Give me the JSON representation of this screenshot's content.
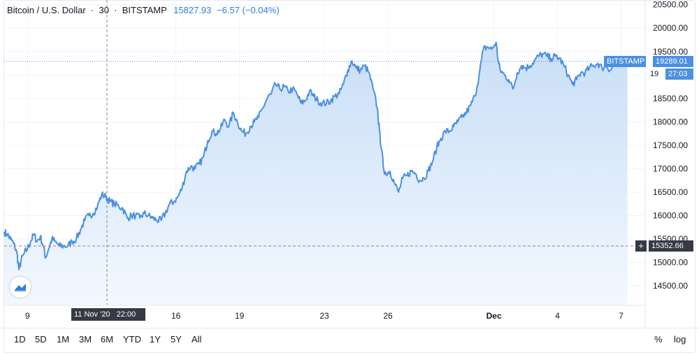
{
  "header": {
    "symbol": "Bitcoin / U.S. Dollar",
    "interval": "30",
    "exchange": "BITSTAMP",
    "price": "15827.93",
    "change": "−6.57 (−0.04%)"
  },
  "price_tags": {
    "exchange_label": "BITSTAMP",
    "last_price": "19289.01",
    "countdown": "27:03",
    "hidden_prefix": "19",
    "crosshair_price": "15352.66",
    "crosshair_date": "11 Nov '20   22:00",
    "plus": "+"
  },
  "ranges": [
    "1D",
    "5D",
    "1M",
    "3M",
    "6M",
    "YTD",
    "1Y",
    "5Y",
    "All"
  ],
  "options": {
    "percent": "%",
    "log": "log"
  },
  "colors": {
    "line": "#4a90e2",
    "area_top": "#c8def7",
    "area_bottom": "#f3f8fe",
    "tag_blue": "#4a90e2",
    "tag_dark": "#363a45",
    "grid": "#f0f3fa",
    "text": "#131722"
  },
  "icons": {
    "logo": "tradingview-logo-icon"
  },
  "chart_data": {
    "type": "area",
    "title": "Bitcoin / U.S. Dollar",
    "xlabel": "",
    "ylabel": "",
    "x_ticks": [
      "9",
      "16",
      "19",
      "23",
      "26",
      "Dec",
      "4",
      "7"
    ],
    "y_ticks": [
      14500,
      15000,
      15500,
      16000,
      16500,
      17000,
      17500,
      18000,
      18500,
      19000,
      19500,
      20000,
      20500
    ],
    "y_tick_labels": [
      "14500.00",
      "15000.00",
      "15500.00",
      "16000.00",
      "16500.00",
      "17000.00",
      "17500.00",
      "18000.00",
      "18500.00",
      "19000.00",
      "19500.00",
      "20000.00",
      "20500.00"
    ],
    "ylim": [
      14100,
      20600
    ],
    "xlim_day": [
      7.9,
      38.1
    ],
    "grid": true,
    "series": [
      {
        "points": [
          [
            7.9,
            15650
          ],
          [
            8.05,
            15600
          ],
          [
            8.2,
            15500
          ],
          [
            8.35,
            15400
          ],
          [
            8.5,
            15200
          ],
          [
            8.6,
            14850
          ],
          [
            8.7,
            15050
          ],
          [
            8.85,
            15200
          ],
          [
            9.0,
            15300
          ],
          [
            9.15,
            15450
          ],
          [
            9.3,
            15600
          ],
          [
            9.45,
            15450
          ],
          [
            9.6,
            15550
          ],
          [
            9.75,
            15350
          ],
          [
            9.85,
            15100
          ],
          [
            10.0,
            15300
          ],
          [
            10.15,
            15500
          ],
          [
            10.3,
            15450
          ],
          [
            10.5,
            15350
          ],
          [
            10.7,
            15350
          ],
          [
            10.9,
            15350
          ],
          [
            11.1,
            15450
          ],
          [
            11.3,
            15500
          ],
          [
            11.5,
            15700
          ],
          [
            11.7,
            15900
          ],
          [
            11.9,
            16000
          ],
          [
            12.1,
            16050
          ],
          [
            12.3,
            16200
          ],
          [
            12.5,
            16450
          ],
          [
            12.7,
            16400
          ],
          [
            12.9,
            16300
          ],
          [
            13.1,
            16250
          ],
          [
            13.3,
            16200
          ],
          [
            13.5,
            16150
          ],
          [
            13.7,
            15950
          ],
          [
            13.9,
            16000
          ],
          [
            14.1,
            16000
          ],
          [
            14.3,
            15950
          ],
          [
            14.5,
            16050
          ],
          [
            14.7,
            16000
          ],
          [
            14.9,
            15950
          ],
          [
            15.1,
            15900
          ],
          [
            15.3,
            15900
          ],
          [
            15.5,
            16050
          ],
          [
            15.7,
            16250
          ],
          [
            15.9,
            16300
          ],
          [
            16.1,
            16400
          ],
          [
            16.3,
            16600
          ],
          [
            16.5,
            16950
          ],
          [
            16.7,
            17050
          ],
          [
            16.9,
            17000
          ],
          [
            17.1,
            17100
          ],
          [
            17.3,
            17250
          ],
          [
            17.5,
            17600
          ],
          [
            17.7,
            17800
          ],
          [
            17.9,
            17750
          ],
          [
            18.1,
            17850
          ],
          [
            18.3,
            18050
          ],
          [
            18.5,
            17900
          ],
          [
            18.7,
            18200
          ],
          [
            18.9,
            18000
          ],
          [
            19.1,
            17800
          ],
          [
            19.3,
            17750
          ],
          [
            19.5,
            17900
          ],
          [
            19.7,
            18000
          ],
          [
            19.9,
            18100
          ],
          [
            20.1,
            18300
          ],
          [
            20.3,
            18500
          ],
          [
            20.5,
            18600
          ],
          [
            20.7,
            18800
          ],
          [
            20.9,
            18700
          ],
          [
            21.1,
            18750
          ],
          [
            21.3,
            18650
          ],
          [
            21.5,
            18700
          ],
          [
            21.7,
            18600
          ],
          [
            21.9,
            18400
          ],
          [
            22.1,
            18450
          ],
          [
            22.3,
            18650
          ],
          [
            22.5,
            18550
          ],
          [
            22.7,
            18450
          ],
          [
            22.9,
            18400
          ],
          [
            23.1,
            18400
          ],
          [
            23.3,
            18450
          ],
          [
            23.5,
            18550
          ],
          [
            23.7,
            18600
          ],
          [
            23.9,
            18800
          ],
          [
            24.1,
            19100
          ],
          [
            24.3,
            19300
          ],
          [
            24.5,
            19150
          ],
          [
            24.7,
            19100
          ],
          [
            24.9,
            19200
          ],
          [
            25.1,
            19050
          ],
          [
            25.3,
            18700
          ],
          [
            25.5,
            18300
          ],
          [
            25.6,
            17800
          ],
          [
            25.7,
            17400
          ],
          [
            25.8,
            17000
          ],
          [
            25.9,
            16900
          ],
          [
            26.1,
            16950
          ],
          [
            26.3,
            16700
          ],
          [
            26.5,
            16500
          ],
          [
            26.7,
            16800
          ],
          [
            26.9,
            16850
          ],
          [
            27.1,
            16950
          ],
          [
            27.3,
            16900
          ],
          [
            27.5,
            16750
          ],
          [
            27.7,
            16800
          ],
          [
            27.9,
            16950
          ],
          [
            28.1,
            17150
          ],
          [
            28.3,
            17450
          ],
          [
            28.5,
            17650
          ],
          [
            28.7,
            17800
          ],
          [
            28.9,
            17800
          ],
          [
            29.1,
            17900
          ],
          [
            29.3,
            18000
          ],
          [
            29.5,
            18100
          ],
          [
            29.7,
            18200
          ],
          [
            29.9,
            18350
          ],
          [
            30.1,
            18550
          ],
          [
            30.3,
            19000
          ],
          [
            30.5,
            19550
          ],
          [
            30.7,
            19600
          ],
          [
            30.9,
            19550
          ],
          [
            31.1,
            19700
          ],
          [
            31.2,
            19300
          ],
          [
            31.3,
            19100
          ],
          [
            31.5,
            19000
          ],
          [
            31.7,
            18900
          ],
          [
            31.9,
            18700
          ],
          [
            32.1,
            19050
          ],
          [
            32.3,
            19200
          ],
          [
            32.5,
            19150
          ],
          [
            32.7,
            19200
          ],
          [
            32.9,
            19300
          ],
          [
            33.1,
            19400
          ],
          [
            33.3,
            19450
          ],
          [
            33.5,
            19400
          ],
          [
            33.7,
            19350
          ],
          [
            33.9,
            19400
          ],
          [
            34.1,
            19350
          ],
          [
            34.3,
            19200
          ],
          [
            34.5,
            19000
          ],
          [
            34.7,
            18800
          ],
          [
            34.9,
            18900
          ],
          [
            35.1,
            19050
          ],
          [
            35.3,
            19050
          ],
          [
            35.5,
            19150
          ],
          [
            35.7,
            19200
          ],
          [
            35.9,
            19250
          ],
          [
            36.1,
            19150
          ],
          [
            36.3,
            19200
          ],
          [
            36.5,
            19100
          ],
          [
            36.7,
            19250
          ],
          [
            36.9,
            19200
          ],
          [
            37.1,
            19300
          ],
          [
            37.3,
            19250
          ]
        ]
      }
    ]
  }
}
